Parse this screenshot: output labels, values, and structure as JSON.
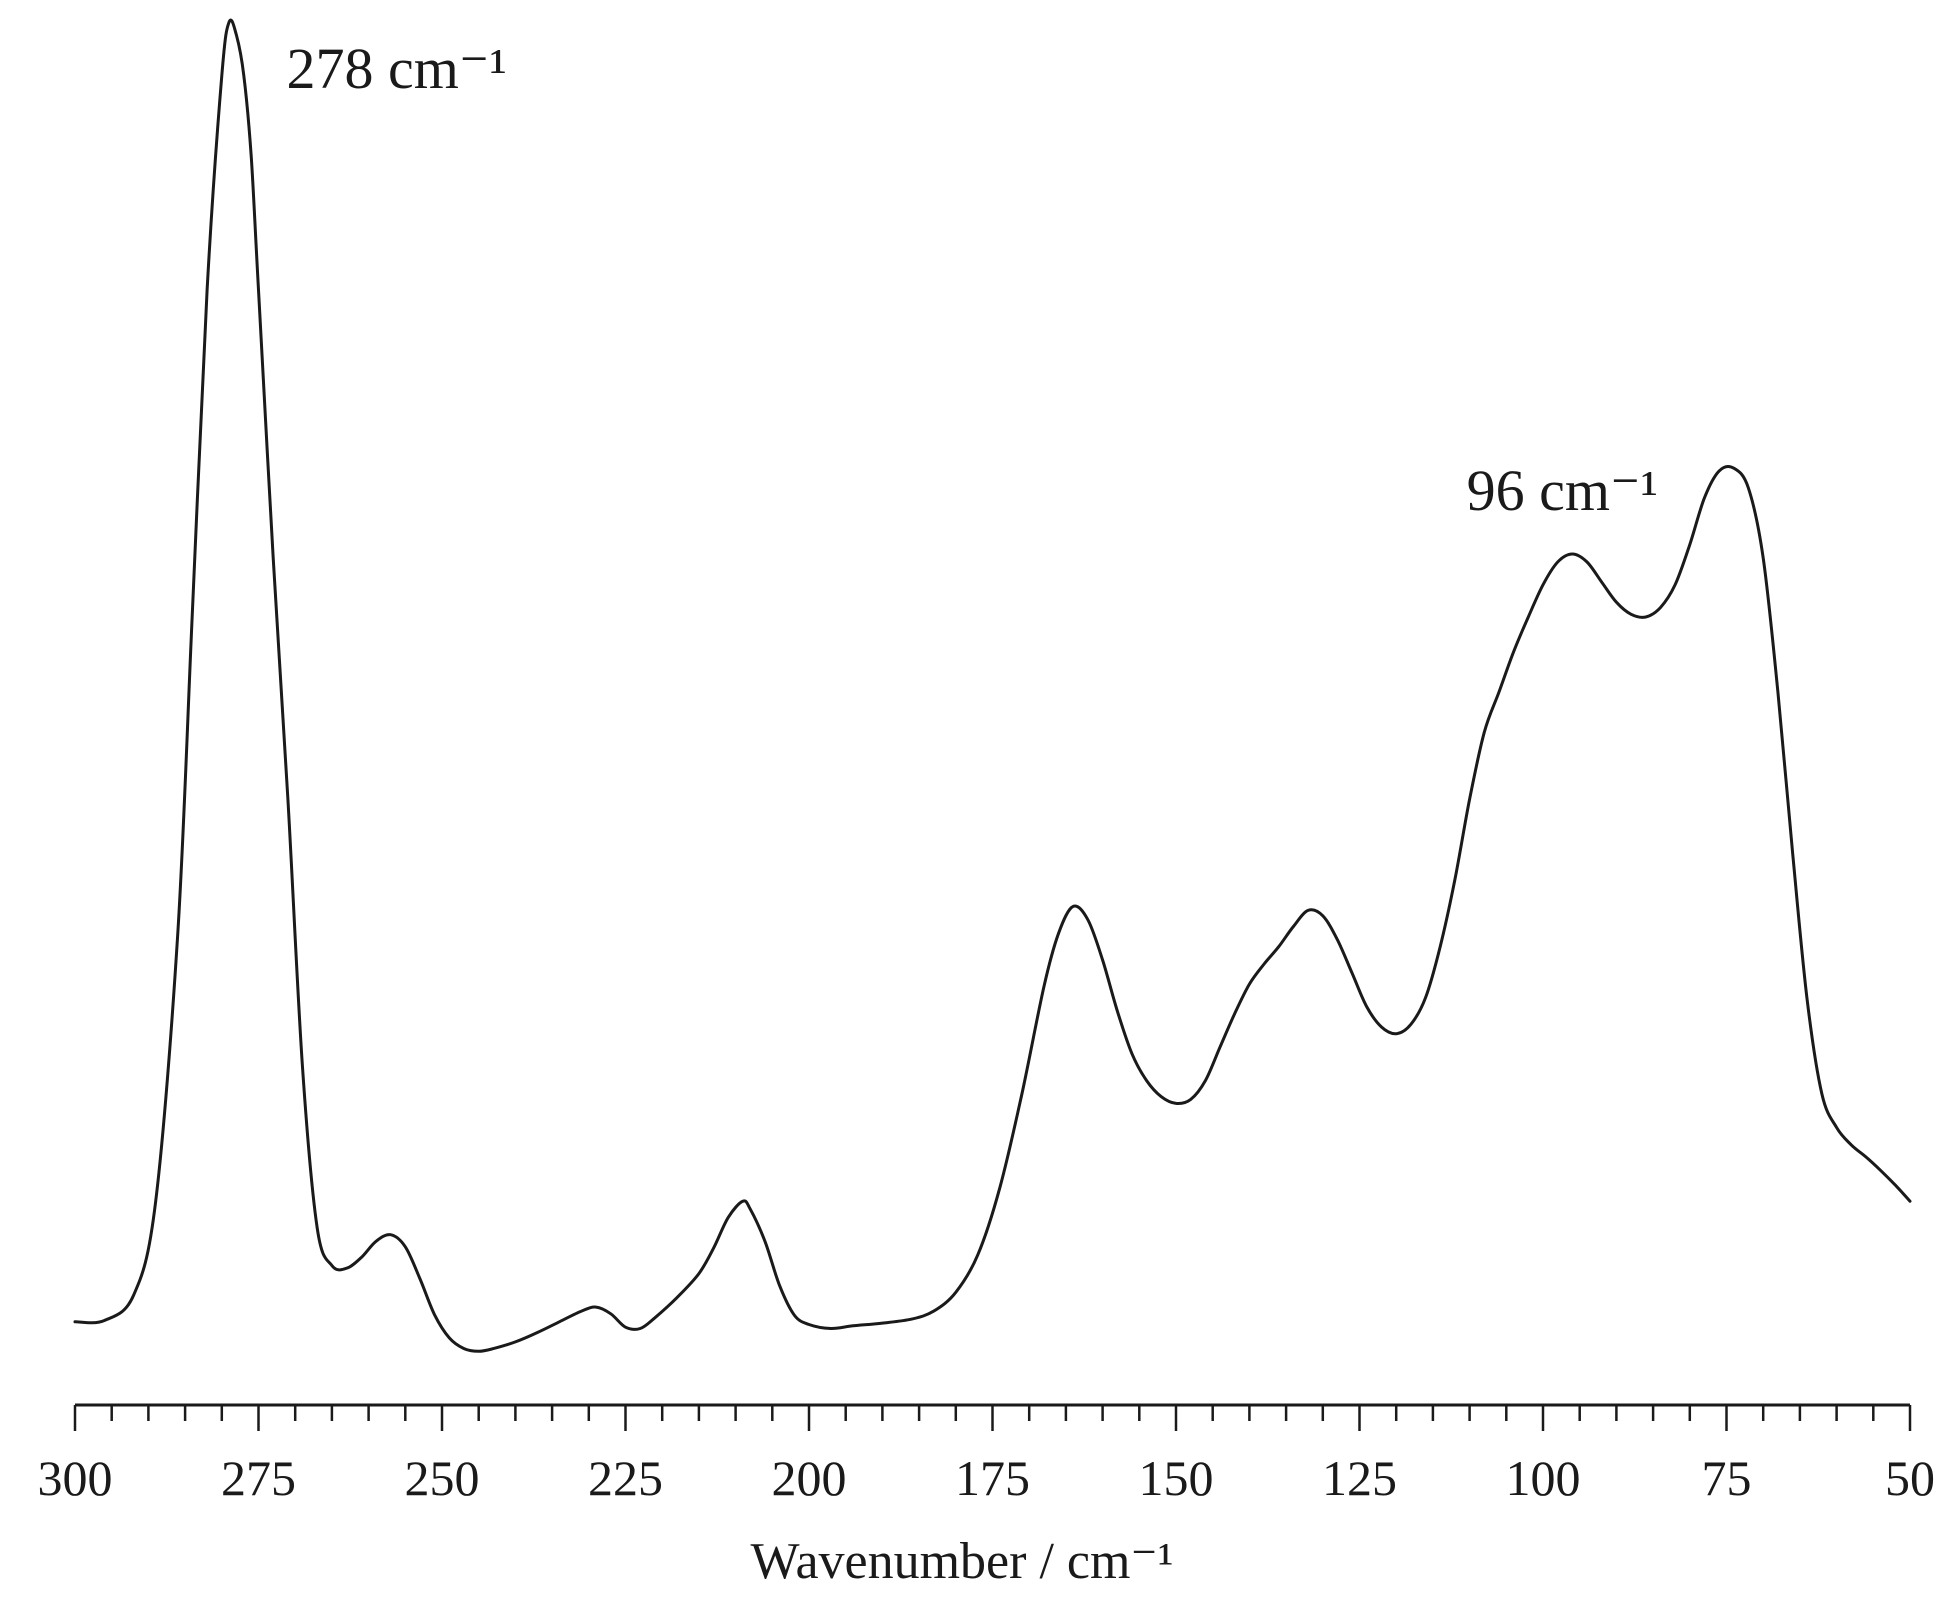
{
  "chart_data": {
    "type": "line",
    "title": "",
    "xlabel": "Wavenumber / cm⁻¹",
    "ylabel": "",
    "xlim": [
      300,
      50
    ],
    "ylim": [
      0,
      1.05
    ],
    "x_reversed": true,
    "x_ticks": [
      300,
      275,
      250,
      225,
      200,
      175,
      150,
      125,
      100,
      75,
      50
    ],
    "x_minor_step": 5,
    "y_axis_visible": false,
    "grid": false,
    "legend": "none",
    "line_color": "#1a1a1a",
    "series": [
      {
        "x": [
          300,
          296,
          292,
          289,
          286,
          284,
          282,
          280,
          279,
          278,
          277,
          276,
          275,
          273,
          271,
          269,
          267,
          265,
          263,
          261,
          259,
          257,
          255,
          253,
          251,
          249,
          247,
          245,
          243,
          240,
          237,
          234,
          231,
          229,
          227,
          225,
          223,
          221,
          218,
          215,
          213,
          211,
          209,
          208,
          206,
          204,
          202,
          200,
          197,
          194,
          190,
          186,
          183,
          180,
          177,
          174,
          171,
          168,
          166,
          164,
          162,
          160,
          158,
          156,
          154,
          152,
          150,
          148,
          146,
          144,
          142,
          140,
          138,
          136,
          134,
          132,
          130,
          128,
          126,
          124,
          122,
          120,
          118,
          116,
          114,
          112,
          110,
          108,
          106,
          104,
          102,
          100,
          98,
          96,
          94,
          92,
          90,
          88,
          86,
          84,
          82,
          80,
          78,
          76,
          74,
          72,
          70,
          68,
          66,
          64,
          62,
          60,
          58,
          56,
          54,
          52,
          50
        ],
        "y": [
          0.03,
          0.031,
          0.05,
          0.12,
          0.32,
          0.56,
          0.8,
          0.96,
          1.0,
          0.99,
          0.96,
          0.9,
          0.8,
          0.6,
          0.42,
          0.22,
          0.1,
          0.072,
          0.07,
          0.078,
          0.09,
          0.095,
          0.086,
          0.062,
          0.035,
          0.018,
          0.01,
          0.008,
          0.01,
          0.015,
          0.022,
          0.03,
          0.038,
          0.041,
          0.036,
          0.026,
          0.025,
          0.033,
          0.048,
          0.066,
          0.085,
          0.108,
          0.12,
          0.114,
          0.09,
          0.057,
          0.035,
          0.028,
          0.025,
          0.027,
          0.029,
          0.032,
          0.038,
          0.052,
          0.08,
          0.13,
          0.2,
          0.28,
          0.32,
          0.34,
          0.33,
          0.3,
          0.262,
          0.23,
          0.21,
          0.198,
          0.193,
          0.196,
          0.21,
          0.235,
          0.26,
          0.282,
          0.297,
          0.31,
          0.325,
          0.337,
          0.333,
          0.315,
          0.29,
          0.265,
          0.25,
          0.245,
          0.252,
          0.272,
          0.31,
          0.36,
          0.42,
          0.47,
          0.5,
          0.53,
          0.556,
          0.58,
          0.597,
          0.603,
          0.597,
          0.582,
          0.567,
          0.558,
          0.556,
          0.563,
          0.58,
          0.61,
          0.645,
          0.665,
          0.667,
          0.652,
          0.6,
          0.5,
          0.38,
          0.27,
          0.2,
          0.175,
          0.162,
          0.153,
          0.143,
          0.132,
          0.12
        ]
      }
    ],
    "annotations": [
      {
        "text": "278 cm⁻¹",
        "x": 278
      },
      {
        "text": "96 cm⁻¹",
        "x": 96
      }
    ]
  }
}
